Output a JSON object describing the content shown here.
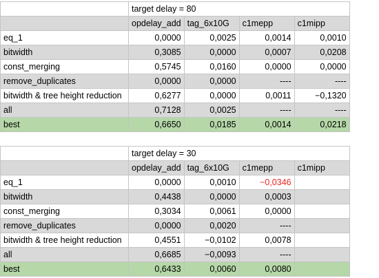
{
  "tables": [
    {
      "title": "target delay = 80",
      "columns": [
        "opdelay_add",
        "tag_6x10G",
        "c1mepp",
        "c1mipp"
      ],
      "rows": [
        {
          "label": "eq_1",
          "values": [
            "0,0000",
            "0,0025",
            "0,0014",
            "0,0010"
          ]
        },
        {
          "label": "bitwidth",
          "values": [
            "0,3085",
            "0,0000",
            "0,0007",
            "0,0208"
          ]
        },
        {
          "label": "const_merging",
          "values": [
            "0,5745",
            "0,0160",
            "0,0000",
            "0,0000"
          ]
        },
        {
          "label": "remove_duplicates",
          "values": [
            "0,0000",
            "0,0000",
            "----",
            "----"
          ]
        },
        {
          "label": "bitwidth & tree height reduction",
          "values": [
            "0,6277",
            "0,0000",
            "0,0011",
            "−0,1320"
          ]
        },
        {
          "label": "all",
          "values": [
            "0,7128",
            "0,0025",
            "----",
            "----"
          ]
        },
        {
          "label": "best",
          "values": [
            "0,6650",
            "0,0185",
            "0,0014",
            "0,0218"
          ]
        }
      ]
    },
    {
      "title": "target delay = 30",
      "columns": [
        "opdelay_add",
        "tag_6x10G",
        "c1mepp",
        "c1mipp"
      ],
      "rows": [
        {
          "label": "eq_1",
          "values": [
            "0,0000",
            "0,0010",
            "−0,0346",
            ""
          ]
        },
        {
          "label": "bitwidth",
          "values": [
            "0,4438",
            "0,0000",
            "0,0003",
            ""
          ]
        },
        {
          "label": "const_merging",
          "values": [
            "0,3034",
            "0,0061",
            "0,0000",
            ""
          ]
        },
        {
          "label": "remove_duplicates",
          "values": [
            "0,0000",
            "0,0020",
            "----",
            ""
          ]
        },
        {
          "label": "bitwidth & tree height reduction",
          "values": [
            "0,4551",
            "−0,0102",
            "0,0078",
            ""
          ]
        },
        {
          "label": "all",
          "values": [
            "0,6685",
            "−0,0093",
            "----",
            ""
          ]
        },
        {
          "label": "best",
          "values": [
            "0,6433",
            "0,0060",
            "0,0080",
            ""
          ]
        }
      ]
    }
  ],
  "colors": {
    "gray_row": "#d9d9d9",
    "best_row": "#b6d7a8",
    "negative_highlight": "#e6261f",
    "border": "#c4c4c4"
  }
}
